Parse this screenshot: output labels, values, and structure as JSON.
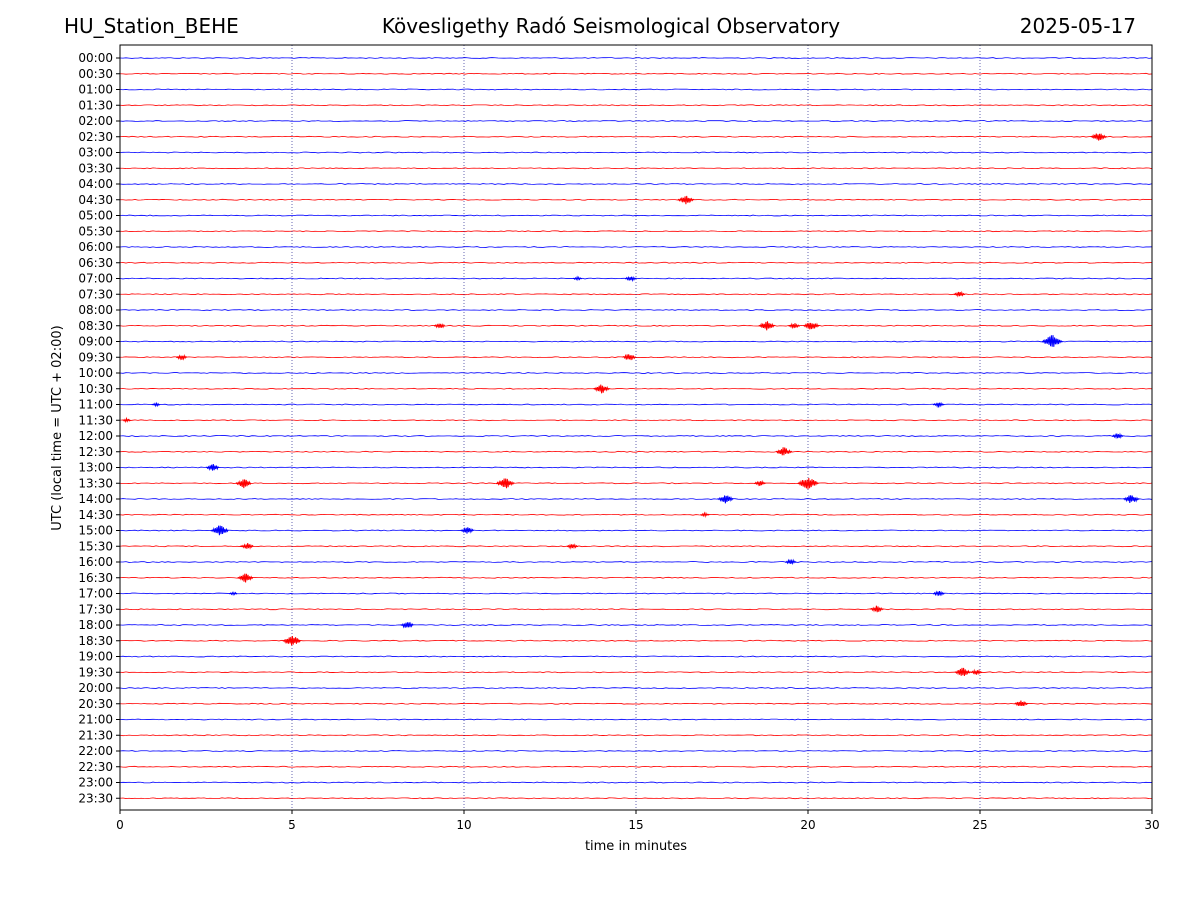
{
  "header": {
    "station": "HU_Station_BEHE",
    "observatory": "Kövesligethy Radó Seismological Observatory",
    "date": "2025-05-17"
  },
  "chart_data": {
    "type": "line",
    "title": "Kövesligethy Radó Seismological Observatory",
    "xlabel": "time in minutes",
    "ylabel": "UTC (local time = UTC + 02:00)",
    "xlim": [
      0,
      30
    ],
    "xticks": [
      0,
      5,
      10,
      15,
      20,
      25,
      30
    ],
    "grid_x": true,
    "grid_x_style": "dotted",
    "colors": {
      "even_trace": "#0000ff",
      "odd_trace": "#ff0000",
      "grid": "#000080"
    },
    "row_labels": [
      "00:00",
      "00:30",
      "01:00",
      "01:30",
      "02:00",
      "02:30",
      "03:00",
      "03:30",
      "04:00",
      "04:30",
      "05:00",
      "05:30",
      "06:00",
      "06:30",
      "07:00",
      "07:30",
      "08:00",
      "08:30",
      "09:00",
      "09:30",
      "10:00",
      "10:30",
      "11:00",
      "11:30",
      "12:00",
      "12:30",
      "13:00",
      "13:30",
      "14:00",
      "14:30",
      "15:00",
      "15:30",
      "16:00",
      "16:30",
      "17:00",
      "17:30",
      "18:00",
      "18:30",
      "19:00",
      "19:30",
      "20:00",
      "20:30",
      "21:00",
      "21:30",
      "22:00",
      "22:30",
      "23:00",
      "23:30"
    ],
    "events": [
      {
        "row": "02:30",
        "minute": 28.45,
        "amp": 5
      },
      {
        "row": "04:30",
        "minute": 16.45,
        "amp": 5
      },
      {
        "row": "07:00",
        "minute": 13.3,
        "amp": 2
      },
      {
        "row": "07:00",
        "minute": 14.85,
        "amp": 3
      },
      {
        "row": "07:30",
        "minute": 24.4,
        "amp": 3
      },
      {
        "row": "08:30",
        "minute": 9.3,
        "amp": 3
      },
      {
        "row": "08:30",
        "minute": 18.8,
        "amp": 5
      },
      {
        "row": "08:30",
        "minute": 19.6,
        "amp": 3
      },
      {
        "row": "08:30",
        "minute": 20.1,
        "amp": 5
      },
      {
        "row": "09:00",
        "minute": 27.1,
        "amp": 7
      },
      {
        "row": "09:30",
        "minute": 1.8,
        "amp": 3
      },
      {
        "row": "09:30",
        "minute": 14.8,
        "amp": 4
      },
      {
        "row": "10:30",
        "minute": 14.0,
        "amp": 5
      },
      {
        "row": "11:00",
        "minute": 1.05,
        "amp": 2
      },
      {
        "row": "11:00",
        "minute": 23.8,
        "amp": 3
      },
      {
        "row": "11:30",
        "minute": 0.2,
        "amp": 2
      },
      {
        "row": "12:00",
        "minute": 29.0,
        "amp": 3
      },
      {
        "row": "12:30",
        "minute": 19.3,
        "amp": 5
      },
      {
        "row": "13:00",
        "minute": 2.7,
        "amp": 4
      },
      {
        "row": "13:30",
        "minute": 3.6,
        "amp": 5
      },
      {
        "row": "13:30",
        "minute": 11.2,
        "amp": 6
      },
      {
        "row": "13:30",
        "minute": 18.6,
        "amp": 3
      },
      {
        "row": "13:30",
        "minute": 20.0,
        "amp": 7
      },
      {
        "row": "14:00",
        "minute": 17.6,
        "amp": 5
      },
      {
        "row": "14:00",
        "minute": 29.4,
        "amp": 5
      },
      {
        "row": "14:30",
        "minute": 17.0,
        "amp": 2
      },
      {
        "row": "15:00",
        "minute": 2.9,
        "amp": 6
      },
      {
        "row": "15:00",
        "minute": 10.1,
        "amp": 4
      },
      {
        "row": "15:30",
        "minute": 3.7,
        "amp": 4
      },
      {
        "row": "15:30",
        "minute": 13.15,
        "amp": 3
      },
      {
        "row": "16:00",
        "minute": 19.5,
        "amp": 3
      },
      {
        "row": "16:30",
        "minute": 3.65,
        "amp": 5
      },
      {
        "row": "17:00",
        "minute": 3.3,
        "amp": 2
      },
      {
        "row": "17:00",
        "minute": 23.8,
        "amp": 3
      },
      {
        "row": "17:30",
        "minute": 22.0,
        "amp": 4
      },
      {
        "row": "18:00",
        "minute": 8.35,
        "amp": 4
      },
      {
        "row": "18:30",
        "minute": 5.0,
        "amp": 6
      },
      {
        "row": "19:30",
        "minute": 24.5,
        "amp": 5
      },
      {
        "row": "19:30",
        "minute": 24.9,
        "amp": 3
      },
      {
        "row": "20:30",
        "minute": 26.2,
        "amp": 4
      }
    ]
  }
}
